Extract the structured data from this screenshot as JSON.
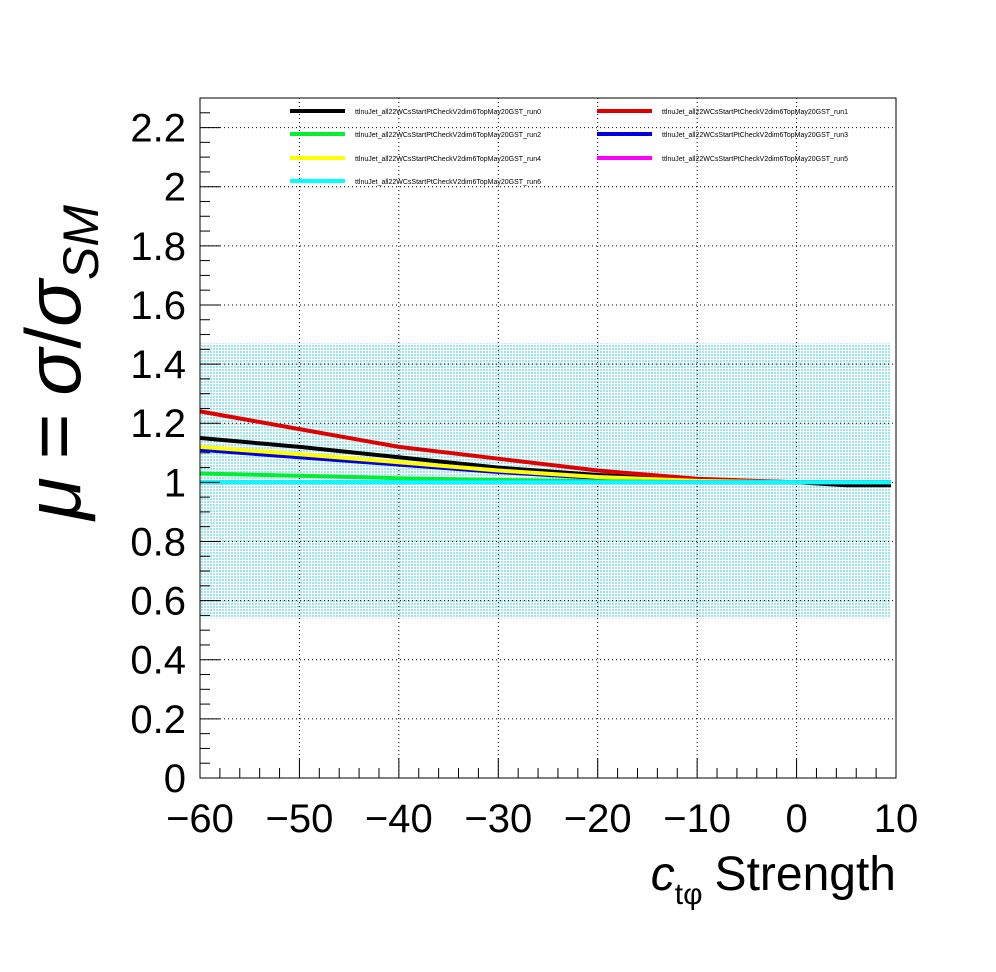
{
  "chart_data": {
    "type": "line",
    "xlabel": {
      "symbol": "c",
      "subscript": "tφ",
      "text": "Strength"
    },
    "ylabel": {
      "mu": "μ",
      "equals": "=",
      "sigma": "σ",
      "slash": "/",
      "sigma_sm": "σ",
      "sm_sub": "SM"
    },
    "xlim": [
      -60,
      10
    ],
    "ylim": [
      0,
      2.3
    ],
    "x_ticks": [
      -60,
      -50,
      -40,
      -30,
      -20,
      -10,
      0,
      10
    ],
    "x_tick_labels": [
      "−60",
      "−50",
      "−40",
      "−30",
      "−20",
      "−10",
      "0",
      "10"
    ],
    "y_ticks": [
      0,
      0.2,
      0.4,
      0.6,
      0.8,
      1,
      1.2,
      1.4,
      1.6,
      1.8,
      2,
      2.2
    ],
    "y_tick_labels": [
      "0",
      "0.2",
      "0.4",
      "0.6",
      "0.8",
      "1",
      "1.2",
      "1.4",
      "1.6",
      "1.8",
      "2",
      "2.2"
    ],
    "grid": true,
    "legend_placement": "top",
    "band": {
      "xmin": -60,
      "xmax": 9.5,
      "ymin": 0.54,
      "ymax": 1.47,
      "color": "#9ee6ee"
    },
    "series": [
      {
        "name": "ttlnuJet_all22WCsStartPtCheckV2dim6TopMay20GST_run0",
        "color": "#000000",
        "x": [
          -60,
          -50,
          -40,
          -30,
          -20,
          -10,
          0,
          5,
          9.5
        ],
        "y": [
          1.15,
          1.12,
          1.085,
          1.05,
          1.025,
          1.008,
          1.0,
          0.99,
          0.99
        ]
      },
      {
        "name": "ttlnuJet_all22WCsStartPtCheckV2dim6TopMay20GST_run1",
        "color": "#e00000",
        "x": [
          -60,
          -50,
          -40,
          -30,
          -20,
          -10,
          0,
          5,
          9.5
        ],
        "y": [
          1.24,
          1.18,
          1.12,
          1.08,
          1.04,
          1.012,
          1.0,
          1.0,
          1.0
        ]
      },
      {
        "name": "ttlnuJet_all22WCsStartPtCheckV2dim6TopMay20GST_run2",
        "color": "#00ee33",
        "x": [
          -60,
          -50,
          -40,
          -30,
          -20,
          -10,
          0,
          5,
          9.5
        ],
        "y": [
          1.03,
          1.022,
          1.014,
          1.008,
          1.004,
          1.001,
          1.0,
          1.0,
          1.0
        ]
      },
      {
        "name": "ttlnuJet_all22WCsStartPtCheckV2dim6TopMay20GST_run3",
        "color": "#0000e0",
        "x": [
          -60,
          -50,
          -40,
          -30,
          -20,
          -10,
          0,
          5,
          9.5
        ],
        "y": [
          1.11,
          1.085,
          1.06,
          1.035,
          1.015,
          1.005,
          1.0,
          1.0,
          1.0
        ]
      },
      {
        "name": "ttlnuJet_all22WCsStartPtCheckV2dim6TopMay20GST_run4",
        "color": "#ffff00",
        "x": [
          -60,
          -50,
          -40,
          -30,
          -20,
          -10,
          0,
          5,
          9.5
        ],
        "y": [
          1.12,
          1.095,
          1.068,
          1.04,
          1.018,
          1.005,
          1.0,
          1.0,
          1.0
        ]
      },
      {
        "name": "ttlnuJet_all22WCsStartPtCheckV2dim6TopMay20GST_run5",
        "color": "#ff00ff",
        "x": [
          -60,
          -50,
          -40,
          -30,
          -20,
          -10,
          0,
          5,
          9.5
        ],
        "y": [
          1.0,
          1.0,
          1.0,
          1.0,
          1.0,
          1.0,
          1.0,
          1.0,
          1.0
        ]
      },
      {
        "name": "ttlnuJet_all22WCsStartPtCheckV2dim6TopMay20GST_run6",
        "color": "#00ffff",
        "x": [
          -60,
          -50,
          -40,
          -30,
          -20,
          -10,
          0,
          5,
          9.5
        ],
        "y": [
          1.0,
          1.0,
          1.0,
          1.0,
          1.0,
          1.0,
          1.0,
          1.0,
          1.0
        ]
      }
    ]
  }
}
